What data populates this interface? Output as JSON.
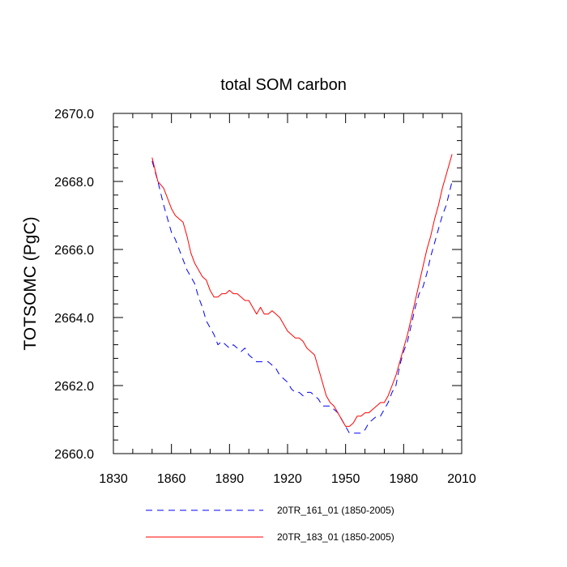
{
  "chart_data": {
    "type": "line",
    "title": "total SOM carbon",
    "xlabel": "",
    "ylabel": "TOTSOMC  (PgC)",
    "xlim": [
      1830,
      2010
    ],
    "ylim": [
      2660,
      2670
    ],
    "xticks": [
      1830,
      1860,
      1890,
      1920,
      1950,
      1980,
      2010
    ],
    "xtick_labels": [
      "1830",
      "1860",
      "1890",
      "1920",
      "1950",
      "1980",
      "2010"
    ],
    "yticks": [
      2660,
      2662,
      2664,
      2666,
      2668,
      2670
    ],
    "ytick_labels": [
      "2660.0",
      "2662.0",
      "2664.0",
      "2666.0",
      "2668.0",
      "2670.0"
    ],
    "legend_position": "bottom",
    "series": [
      {
        "name": "20TR_161_01 (1850-2005)",
        "color": "#0000ff",
        "style": "dashed",
        "x": [
          1850,
          1853,
          1856,
          1858,
          1860,
          1862,
          1864,
          1866,
          1868,
          1870,
          1872,
          1874,
          1876,
          1878,
          1880,
          1882,
          1884,
          1886,
          1888,
          1890,
          1892,
          1894,
          1896,
          1898,
          1900,
          1902,
          1904,
          1906,
          1908,
          1910,
          1912,
          1914,
          1916,
          1918,
          1920,
          1922,
          1924,
          1926,
          1928,
          1930,
          1932,
          1934,
          1936,
          1938,
          1940,
          1942,
          1944,
          1946,
          1948,
          1950,
          1952,
          1954,
          1956,
          1958,
          1960,
          1962,
          1964,
          1966,
          1968,
          1970,
          1972,
          1974,
          1976,
          1978,
          1980,
          1982,
          1984,
          1986,
          1988,
          1990,
          1992,
          1994,
          1996,
          1998,
          2000,
          2002,
          2005
        ],
        "y": [
          2668.6,
          2668.0,
          2667.3,
          2666.9,
          2666.5,
          2666.3,
          2666.0,
          2665.7,
          2665.4,
          2665.2,
          2665.0,
          2664.6,
          2664.3,
          2663.9,
          2663.7,
          2663.5,
          2663.2,
          2663.3,
          2663.2,
          2663.1,
          2663.2,
          2663.1,
          2663.0,
          2663.1,
          2662.9,
          2662.8,
          2662.7,
          2662.7,
          2662.7,
          2662.7,
          2662.6,
          2662.5,
          2662.3,
          2662.2,
          2662.1,
          2661.9,
          2661.8,
          2661.8,
          2661.7,
          2661.8,
          2661.8,
          2661.7,
          2661.6,
          2661.4,
          2661.4,
          2661.4,
          2661.3,
          2661.2,
          2661.0,
          2660.8,
          2660.6,
          2660.6,
          2660.6,
          2660.6,
          2660.7,
          2660.9,
          2661.0,
          2661.1,
          2661.1,
          2661.3,
          2661.5,
          2661.8,
          2662.0,
          2662.6,
          2663.0,
          2663.3,
          2663.8,
          2664.3,
          2664.7,
          2664.9,
          2665.3,
          2665.8,
          2666.2,
          2666.6,
          2667.0,
          2667.3,
          2668.0
        ]
      },
      {
        "name": "20TR_183_01 (1850-2005)",
        "color": "#ff0000",
        "style": "solid",
        "x": [
          1850,
          1853,
          1856,
          1858,
          1860,
          1862,
          1864,
          1866,
          1868,
          1870,
          1872,
          1874,
          1876,
          1878,
          1880,
          1882,
          1884,
          1886,
          1888,
          1890,
          1892,
          1894,
          1896,
          1898,
          1900,
          1902,
          1904,
          1906,
          1908,
          1910,
          1912,
          1914,
          1916,
          1918,
          1920,
          1922,
          1924,
          1926,
          1928,
          1930,
          1932,
          1934,
          1936,
          1938,
          1940,
          1942,
          1944,
          1946,
          1948,
          1950,
          1952,
          1954,
          1956,
          1958,
          1960,
          1962,
          1964,
          1966,
          1968,
          1970,
          1972,
          1974,
          1976,
          1978,
          1980,
          1982,
          1984,
          1986,
          1988,
          1990,
          1992,
          1994,
          1996,
          1998,
          2000,
          2002,
          2005
        ],
        "y": [
          2668.7,
          2668.0,
          2667.8,
          2667.5,
          2667.2,
          2667.0,
          2666.9,
          2666.8,
          2666.4,
          2665.9,
          2665.6,
          2665.4,
          2665.2,
          2665.1,
          2664.8,
          2664.6,
          2664.6,
          2664.7,
          2664.7,
          2664.8,
          2664.7,
          2664.7,
          2664.6,
          2664.5,
          2664.5,
          2664.3,
          2664.1,
          2664.3,
          2664.1,
          2664.1,
          2664.2,
          2664.1,
          2664.0,
          2663.8,
          2663.6,
          2663.5,
          2663.4,
          2663.4,
          2663.3,
          2663.1,
          2663.0,
          2662.9,
          2662.5,
          2662.1,
          2661.7,
          2661.5,
          2661.4,
          2661.2,
          2661.0,
          2660.8,
          2660.8,
          2660.9,
          2661.1,
          2661.1,
          2661.2,
          2661.2,
          2661.3,
          2661.4,
          2661.5,
          2661.5,
          2661.7,
          2662.0,
          2662.3,
          2662.7,
          2663.1,
          2663.5,
          2664.0,
          2664.5,
          2665.0,
          2665.5,
          2666.0,
          2666.4,
          2666.9,
          2667.3,
          2667.8,
          2668.2,
          2668.8
        ]
      }
    ]
  }
}
